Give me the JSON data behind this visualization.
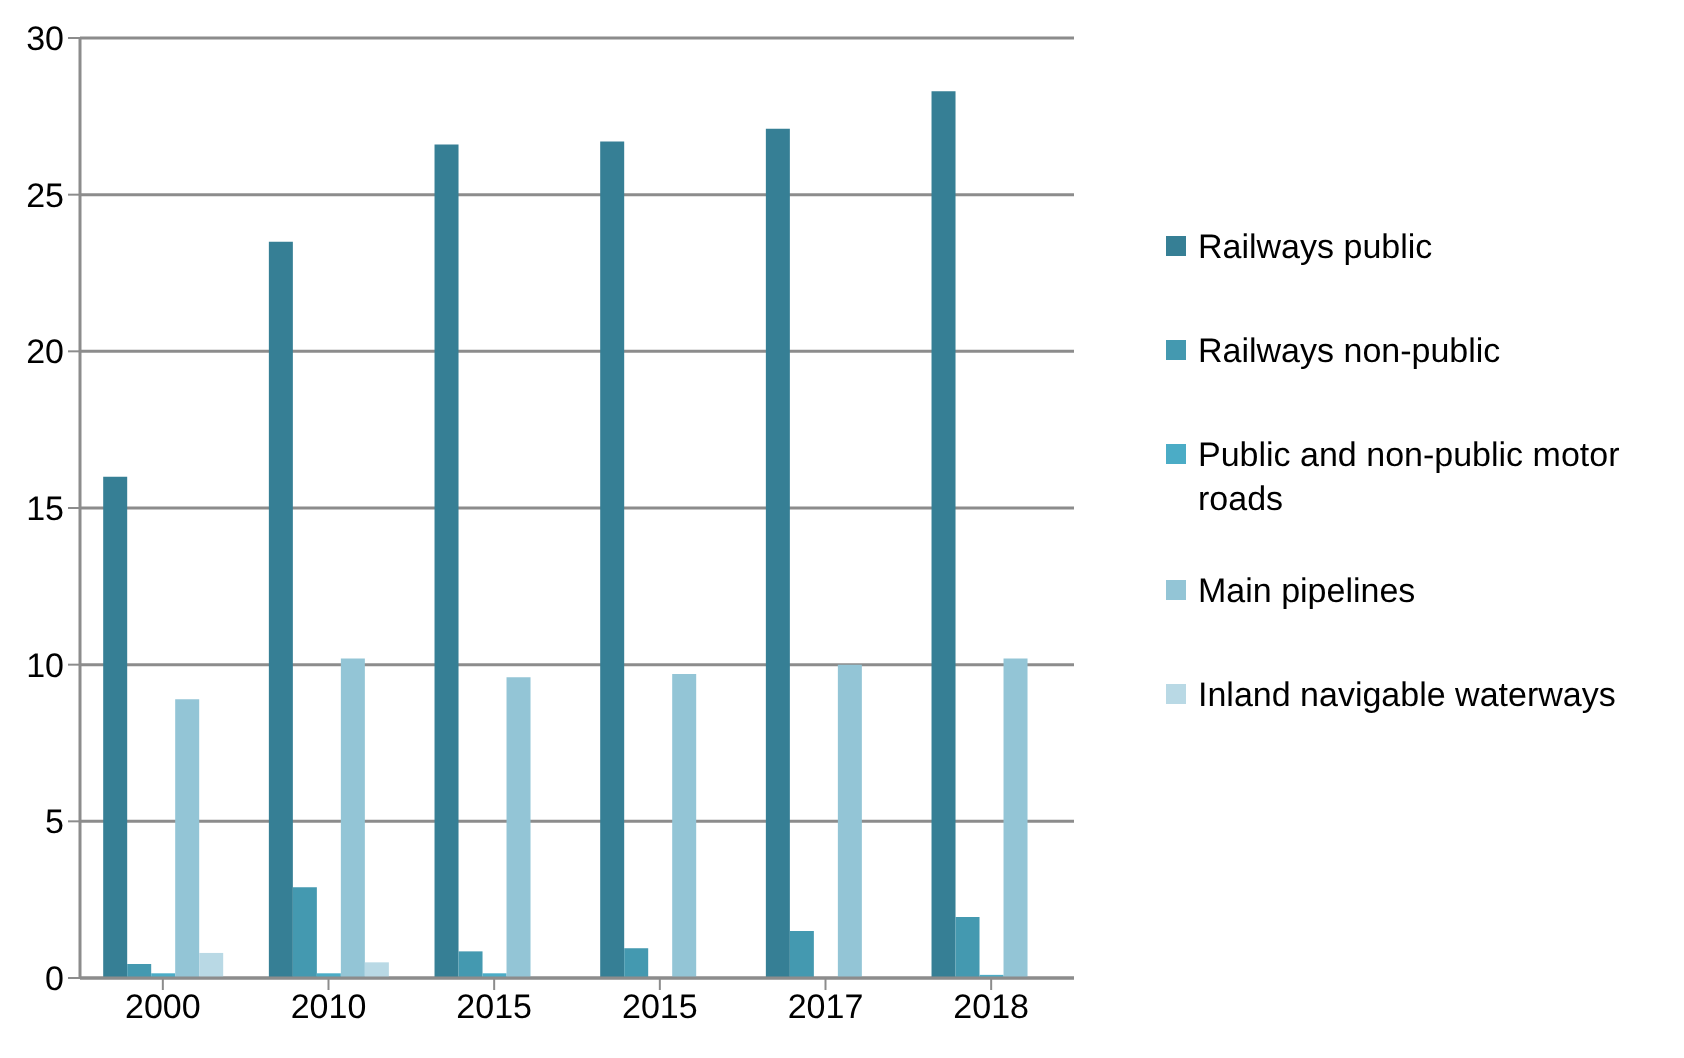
{
  "chart_data": {
    "type": "bar",
    "categories": [
      "2000",
      "2010",
      "2015",
      "2015",
      "2017",
      "2018"
    ],
    "series": [
      {
        "name": "Railways public",
        "color": "#367f95",
        "values": [
          16.0,
          23.5,
          26.6,
          26.7,
          27.1,
          28.3
        ]
      },
      {
        "name": "Railways non-public",
        "color": "#4499b0",
        "values": [
          0.45,
          2.9,
          0.85,
          0.95,
          1.5,
          1.95
        ]
      },
      {
        "name": "Public and non-public motor roads",
        "color": "#4bacc6",
        "values": [
          0.15,
          0.15,
          0.15,
          0.03,
          0.03,
          0.1
        ]
      },
      {
        "name": "Main pipelines",
        "color": "#93c5d6",
        "values": [
          8.9,
          10.2,
          9.6,
          9.7,
          10.0,
          10.2
        ]
      },
      {
        "name": "Inland navigable waterways",
        "color": "#b9d9e5",
        "values": [
          0.8,
          0.5,
          0,
          0,
          0,
          0
        ]
      }
    ],
    "ylim": [
      0,
      30
    ],
    "yticks": [
      0,
      5,
      10,
      15,
      20,
      25,
      30
    ],
    "grid": "y",
    "legend": "right"
  }
}
